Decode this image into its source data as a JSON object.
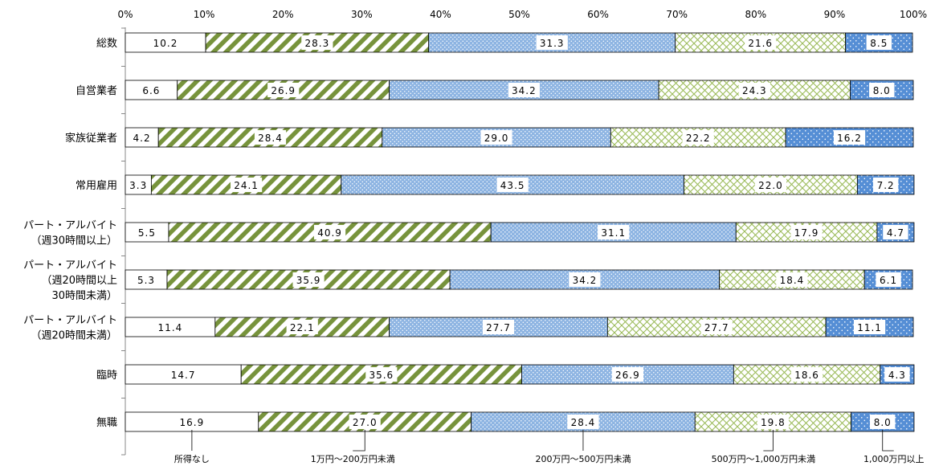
{
  "chart_data": {
    "type": "bar",
    "orientation": "horizontal",
    "stacked": true,
    "normalized_100": true,
    "categories": [
      [
        "総数"
      ],
      [
        "自営業者"
      ],
      [
        "家族従業者"
      ],
      [
        "常用雇用"
      ],
      [
        "パート・アルバイト",
        "（週30時間以上）"
      ],
      [
        "パート・アルバイト",
        "（週20時間以上",
        "30時間未満）"
      ],
      [
        "パート・アルバイト",
        "（週20時間未満）"
      ],
      [
        "臨時"
      ],
      [
        "無職"
      ]
    ],
    "series": [
      {
        "name": "所得なし",
        "color": "#ffffff",
        "pattern": "none",
        "values": [
          10.2,
          6.6,
          4.2,
          3.3,
          5.5,
          5.3,
          11.4,
          14.7,
          16.9
        ]
      },
      {
        "name": "1万円～200万円未満",
        "color": "#77933c",
        "pattern": "diagonal-stripes",
        "values": [
          28.3,
          26.9,
          28.4,
          24.1,
          40.9,
          35.9,
          22.1,
          35.6,
          27.0
        ]
      },
      {
        "name": "200万円～500万円未満",
        "color": "#8db4e2",
        "pattern": "dots",
        "values": [
          31.3,
          34.2,
          29.0,
          43.5,
          31.1,
          34.2,
          27.7,
          26.9,
          28.4
        ]
      },
      {
        "name": "500万円～1,000万円未満",
        "color": "#9bbb59",
        "pattern": "crosshatch",
        "values": [
          21.6,
          24.3,
          22.2,
          22.0,
          17.9,
          18.4,
          27.7,
          18.6,
          19.8
        ]
      },
      {
        "name": "1,000万円以上",
        "color": "#558ed5",
        "pattern": "dots",
        "values": [
          8.5,
          8.0,
          16.2,
          7.2,
          4.7,
          6.1,
          11.1,
          4.3,
          8.0
        ]
      }
    ],
    "data_labels": [
      [
        "10.2",
        "28.3",
        "31.3",
        "21.6",
        "8.5"
      ],
      [
        "6.6",
        "26.9",
        "34.2",
        "24.3",
        "8.0"
      ],
      [
        "4.2",
        "28.4",
        "29.0",
        "22.2",
        "16.2"
      ],
      [
        "3.3",
        "24.1",
        "43.5",
        "22.0",
        "7.2"
      ],
      [
        "5.5",
        "40.9",
        "31.1",
        "17.9",
        "4.7"
      ],
      [
        "5.3",
        "35.9",
        "34.2",
        "18.4",
        "6.1"
      ],
      [
        "11.4",
        "22.1",
        "27.7",
        "27.7",
        "11.1"
      ],
      [
        "14.7",
        "35.6",
        "26.9",
        "18.6",
        "4.3"
      ],
      [
        "16.9",
        "27.0",
        "28.4",
        "19.8",
        "8.0"
      ]
    ],
    "x_ticks": [
      "0%",
      "10%",
      "20%",
      "30%",
      "40%",
      "50%",
      "60%",
      "70%",
      "80%",
      "90%",
      "100%"
    ],
    "xlim": [
      0,
      100
    ],
    "grid": false,
    "legend": "bottom, callouts under last bar"
  }
}
